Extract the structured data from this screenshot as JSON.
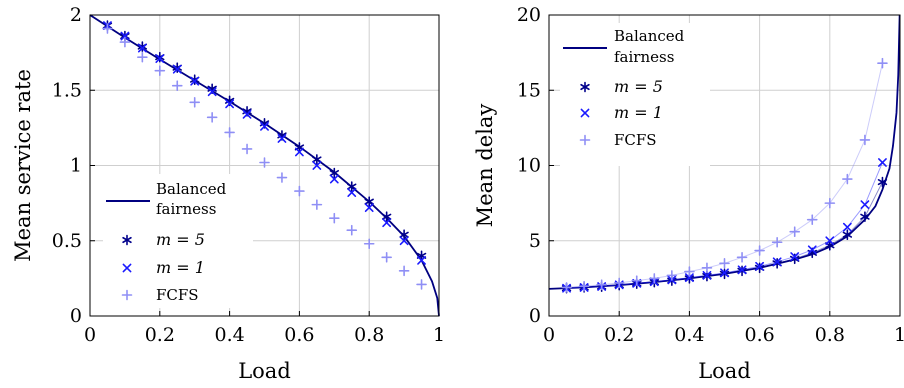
{
  "chart_data": [
    {
      "type": "line",
      "xlabel": "Load",
      "ylabel": "Mean service rate",
      "xlim": [
        0,
        1
      ],
      "ylim": [
        0,
        2
      ],
      "xticks": [
        "0",
        "0.2",
        "0.4",
        "0.6",
        "0.8",
        "1"
      ],
      "yticks": [
        "0",
        "0.5",
        "1",
        "1.5",
        "2"
      ],
      "grid": true,
      "legend_position": "bottom-left",
      "series": [
        {
          "name": "Balanced fairness",
          "style": "line",
          "color": "#000080",
          "x": [
            0,
            0.1,
            0.2,
            0.3,
            0.4,
            0.5,
            0.6,
            0.7,
            0.8,
            0.85,
            0.9,
            0.95,
            0.98,
            0.995,
            1
          ],
          "values": [
            2,
            1.85,
            1.705,
            1.565,
            1.425,
            1.28,
            1.125,
            0.955,
            0.76,
            0.65,
            0.53,
            0.37,
            0.23,
            0.12,
            0
          ]
        },
        {
          "name": "m = 5",
          "style": "asterisk",
          "color": "#00008b",
          "x": [
            0.05,
            0.1,
            0.15,
            0.2,
            0.25,
            0.3,
            0.35,
            0.4,
            0.45,
            0.5,
            0.55,
            0.6,
            0.65,
            0.7,
            0.75,
            0.8,
            0.85,
            0.9,
            0.95
          ],
          "values": [
            1.93,
            1.86,
            1.79,
            1.72,
            1.65,
            1.57,
            1.51,
            1.43,
            1.36,
            1.28,
            1.2,
            1.12,
            1.04,
            0.95,
            0.86,
            0.76,
            0.66,
            0.54,
            0.4
          ]
        },
        {
          "name": "m = 1",
          "style": "cross",
          "color": "#1a1aff",
          "x": [
            0.05,
            0.1,
            0.15,
            0.2,
            0.25,
            0.3,
            0.35,
            0.4,
            0.45,
            0.5,
            0.55,
            0.6,
            0.65,
            0.7,
            0.75,
            0.8,
            0.85,
            0.9,
            0.95
          ],
          "values": [
            1.93,
            1.86,
            1.78,
            1.71,
            1.64,
            1.56,
            1.49,
            1.41,
            1.34,
            1.26,
            1.18,
            1.09,
            1.0,
            0.91,
            0.82,
            0.72,
            0.62,
            0.5,
            0.37
          ]
        },
        {
          "name": "FCFS",
          "style": "plus",
          "color": "#8f8ff5",
          "x": [
            0.05,
            0.1,
            0.15,
            0.2,
            0.25,
            0.3,
            0.35,
            0.4,
            0.45,
            0.5,
            0.55,
            0.6,
            0.65,
            0.7,
            0.75,
            0.8,
            0.85,
            0.9,
            0.95
          ],
          "values": [
            1.91,
            1.82,
            1.72,
            1.63,
            1.53,
            1.42,
            1.32,
            1.22,
            1.11,
            1.02,
            0.92,
            0.83,
            0.74,
            0.65,
            0.57,
            0.48,
            0.39,
            0.3,
            0.21
          ]
        }
      ]
    },
    {
      "type": "line",
      "xlabel": "Load",
      "ylabel": "Mean delay",
      "xlim": [
        0,
        1
      ],
      "ylim": [
        0,
        20
      ],
      "xticks": [
        "0",
        "0.2",
        "0.4",
        "0.6",
        "0.8",
        "1"
      ],
      "yticks": [
        "0",
        "5",
        "10",
        "15",
        "20"
      ],
      "grid": true,
      "legend_position": "top-left",
      "series": [
        {
          "name": "Balanced fairness",
          "style": "line",
          "color": "#000080",
          "x": [
            0,
            0.1,
            0.2,
            0.3,
            0.4,
            0.5,
            0.6,
            0.7,
            0.75,
            0.8,
            0.85,
            0.9,
            0.93,
            0.95,
            0.97,
            0.98,
            0.99,
            0.995,
            0.999
          ],
          "values": [
            1.8,
            1.9,
            2.05,
            2.25,
            2.5,
            2.8,
            3.2,
            3.75,
            4.1,
            4.6,
            5.3,
            6.4,
            7.3,
            8.4,
            9.8,
            11.3,
            13.5,
            16.0,
            20.0
          ]
        },
        {
          "name": "m = 5",
          "style": "asterisk",
          "color": "#00008b",
          "x": [
            0.05,
            0.1,
            0.15,
            0.2,
            0.25,
            0.3,
            0.35,
            0.4,
            0.45,
            0.5,
            0.55,
            0.6,
            0.65,
            0.7,
            0.75,
            0.8,
            0.85,
            0.9,
            0.95
          ],
          "values": [
            1.85,
            1.9,
            1.95,
            2.05,
            2.15,
            2.25,
            2.35,
            2.5,
            2.65,
            2.8,
            3.0,
            3.2,
            3.5,
            3.8,
            4.2,
            4.7,
            5.4,
            6.6,
            8.9
          ]
        },
        {
          "name": "m = 1",
          "style": "cross",
          "color": "#1a1aff",
          "x": [
            0.05,
            0.1,
            0.15,
            0.2,
            0.25,
            0.3,
            0.35,
            0.4,
            0.45,
            0.5,
            0.55,
            0.6,
            0.65,
            0.7,
            0.75,
            0.8,
            0.85,
            0.9,
            0.95
          ],
          "values": [
            1.85,
            1.9,
            1.96,
            2.07,
            2.17,
            2.28,
            2.4,
            2.55,
            2.7,
            2.87,
            3.07,
            3.3,
            3.6,
            3.95,
            4.4,
            5.0,
            5.9,
            7.4,
            10.2
          ]
        },
        {
          "name": "FCFS",
          "style": "plus",
          "color": "#8f8ff5",
          "x": [
            0.05,
            0.1,
            0.15,
            0.2,
            0.25,
            0.3,
            0.35,
            0.4,
            0.45,
            0.5,
            0.55,
            0.6,
            0.65,
            0.7,
            0.75,
            0.8,
            0.85,
            0.9,
            0.95
          ],
          "values": [
            1.9,
            1.98,
            2.08,
            2.2,
            2.35,
            2.5,
            2.7,
            2.95,
            3.2,
            3.5,
            3.9,
            4.35,
            4.9,
            5.6,
            6.4,
            7.5,
            9.1,
            11.7,
            16.8
          ]
        }
      ]
    }
  ],
  "legend": {
    "balanced_line1": "Balanced",
    "balanced_line2": "fairness",
    "m5": "m = 5",
    "m1": "m = 1",
    "fcfs": "FCFS"
  }
}
